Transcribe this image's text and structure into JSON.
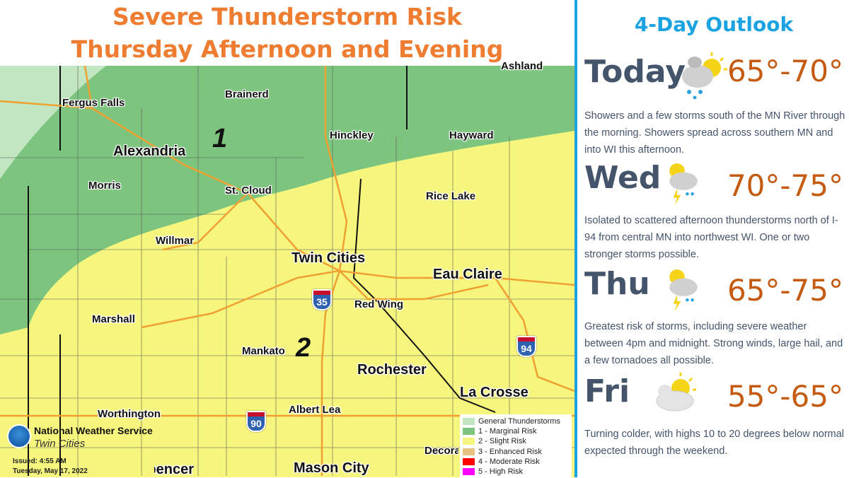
{
  "map_panel": {
    "title_line1": "Severe Thunderstorm Risk",
    "title_line2": "Thursday Afternoon and Evening",
    "risk_labels": [
      "1",
      "2"
    ],
    "cities": [
      {
        "name": "Ashland"
      },
      {
        "name": "Brainerd"
      },
      {
        "name": "Fergus Falls"
      },
      {
        "name": "Alexandria"
      },
      {
        "name": "Hinckley"
      },
      {
        "name": "Hayward"
      },
      {
        "name": "Morris"
      },
      {
        "name": "St. Cloud"
      },
      {
        "name": "Rice Lake"
      },
      {
        "name": "Willmar"
      },
      {
        "name": "Twin Cities"
      },
      {
        "name": "Eau Claire"
      },
      {
        "name": "Red Wing"
      },
      {
        "name": "Marshall"
      },
      {
        "name": "Mankato"
      },
      {
        "name": "Rochester"
      },
      {
        "name": "La Crosse"
      },
      {
        "name": "Worthington"
      },
      {
        "name": "Albert Lea"
      },
      {
        "name": "Decorah"
      },
      {
        "name": "Spencer"
      },
      {
        "name": "Mason City"
      }
    ],
    "interstates": [
      "35",
      "94",
      "90"
    ],
    "legend": [
      {
        "label": "General Thunderstorms",
        "color": "#c1e6c1"
      },
      {
        "label": "1 - Marginal Risk",
        "color": "#7dc57f"
      },
      {
        "label": "2 - Slight Risk",
        "color": "#f6f67f"
      },
      {
        "label": "3 - Enhanced Risk",
        "color": "#e6c27f"
      },
      {
        "label": "4 - Moderate Risk",
        "color": "#ff0000"
      },
      {
        "label": "5 - High Risk",
        "color": "#ff00ff"
      }
    ],
    "office": {
      "name": "National Weather Service",
      "sub": "Twin Cities"
    },
    "issued": "Issued: 4:55 AM",
    "issued_date": "Tuesday, May 17, 2022"
  },
  "outlook": {
    "title": "4-Day Outlook",
    "days": [
      {
        "name": "Today",
        "temp": "65°-70°",
        "icon": "showers-partly-sunny-icon",
        "desc": "Showers and a few storms south of the MN River through the morning. Showers spread across southern MN and into WI this afternoon."
      },
      {
        "name": "Wed",
        "temp": "70°-75°",
        "icon": "thunderstorm-partly-sunny-icon",
        "desc": "Isolated to scattered afternoon thunderstorms north of I-94 from central MN into northwest WI. One or two stronger storms possible."
      },
      {
        "name": "Thu",
        "temp": "65°-75°",
        "icon": "thunderstorm-partly-sunny-icon",
        "desc": "Greatest risk of storms, including severe weather between 4pm and midnight. Strong winds, large hail, and a few tornadoes all possible."
      },
      {
        "name": "Fri",
        "temp": "55°-65°",
        "icon": "partly-cloudy-icon",
        "desc": "Turning colder, with highs 10 to 20 degrees below normal expected through the weekend."
      }
    ]
  }
}
